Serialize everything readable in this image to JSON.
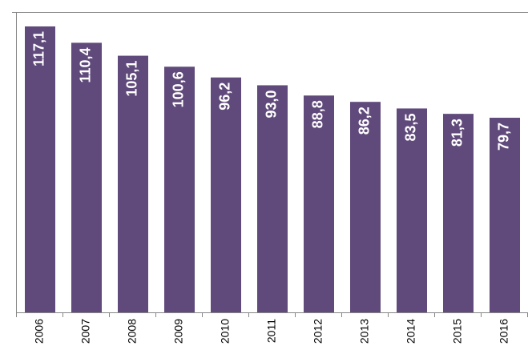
{
  "chart_data": {
    "type": "bar",
    "categories": [
      "2006",
      "2007",
      "2008",
      "2009",
      "2010",
      "2011",
      "2012",
      "2013",
      "2014",
      "2015",
      "2016"
    ],
    "values": [
      117.1,
      110.4,
      105.1,
      100.6,
      96.2,
      93.0,
      88.8,
      86.2,
      83.5,
      81.3,
      79.7
    ],
    "value_labels": [
      "117,1",
      "110,4",
      "105,1",
      "100,6",
      "96,2",
      "93,0",
      "88,8",
      "86,2",
      "83,5",
      "81,3",
      "79,7"
    ],
    "color": "#604a7b",
    "ylim": [
      0,
      123
    ],
    "grid": false
  }
}
